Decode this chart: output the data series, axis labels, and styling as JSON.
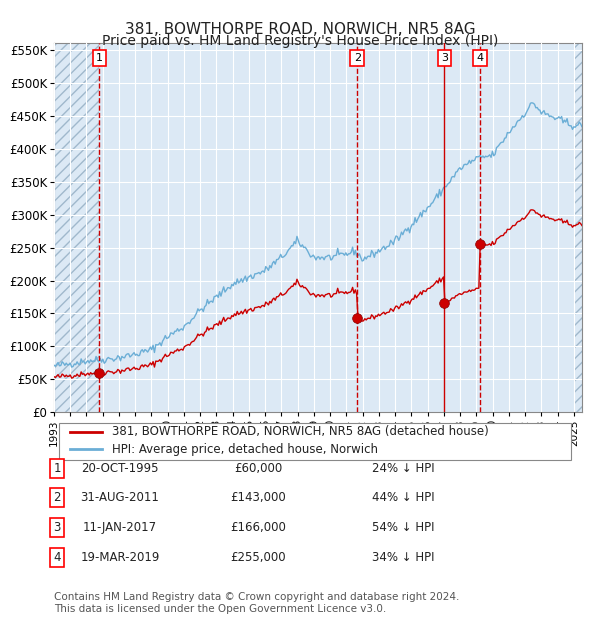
{
  "title1": "381, BOWTHORPE ROAD, NORWICH, NR5 8AG",
  "title2": "Price paid vs. HM Land Registry's House Price Index (HPI)",
  "xlabel": "",
  "ylabel": "",
  "ylim": [
    0,
    560000
  ],
  "yticks": [
    0,
    50000,
    100000,
    150000,
    200000,
    250000,
    300000,
    350000,
    400000,
    450000,
    500000,
    550000
  ],
  "ytick_labels": [
    "£0",
    "£50K",
    "£100K",
    "£150K",
    "£200K",
    "£250K",
    "£300K",
    "£350K",
    "£400K",
    "£450K",
    "£500K",
    "£550K"
  ],
  "xlim_start": 1993.0,
  "xlim_end": 2025.5,
  "hpi_color": "#6baed6",
  "price_color": "#cc0000",
  "background_color": "#dce9f5",
  "hatch_color": "#b0c4d8",
  "grid_color": "#ffffff",
  "vline_color": "#cc0000",
  "sale_dates": [
    1995.8,
    2011.67,
    2017.03,
    2019.22
  ],
  "sale_prices": [
    60000,
    143000,
    166000,
    255000
  ],
  "sale_labels": [
    "1",
    "2",
    "3",
    "4"
  ],
  "sale_vline_style": [
    "dashed",
    "dashed",
    "solid",
    "dashed"
  ],
  "legend_label_red": "381, BOWTHORPE ROAD, NORWICH, NR5 8AG (detached house)",
  "legend_label_blue": "HPI: Average price, detached house, Norwich",
  "table_rows": [
    [
      "1",
      "20-OCT-1995",
      "£60,000",
      "24% ↓ HPI"
    ],
    [
      "2",
      "31-AUG-2011",
      "£143,000",
      "44% ↓ HPI"
    ],
    [
      "3",
      "11-JAN-2017",
      "£166,000",
      "54% ↓ HPI"
    ],
    [
      "4",
      "19-MAR-2019",
      "£255,000",
      "34% ↓ HPI"
    ]
  ],
  "footnote": "Contains HM Land Registry data © Crown copyright and database right 2024.\nThis data is licensed under the Open Government Licence v3.0.",
  "title_fontsize": 11,
  "subtitle_fontsize": 10,
  "tick_fontsize": 8.5,
  "legend_fontsize": 8.5,
  "table_fontsize": 8.5,
  "footnote_fontsize": 7.5
}
